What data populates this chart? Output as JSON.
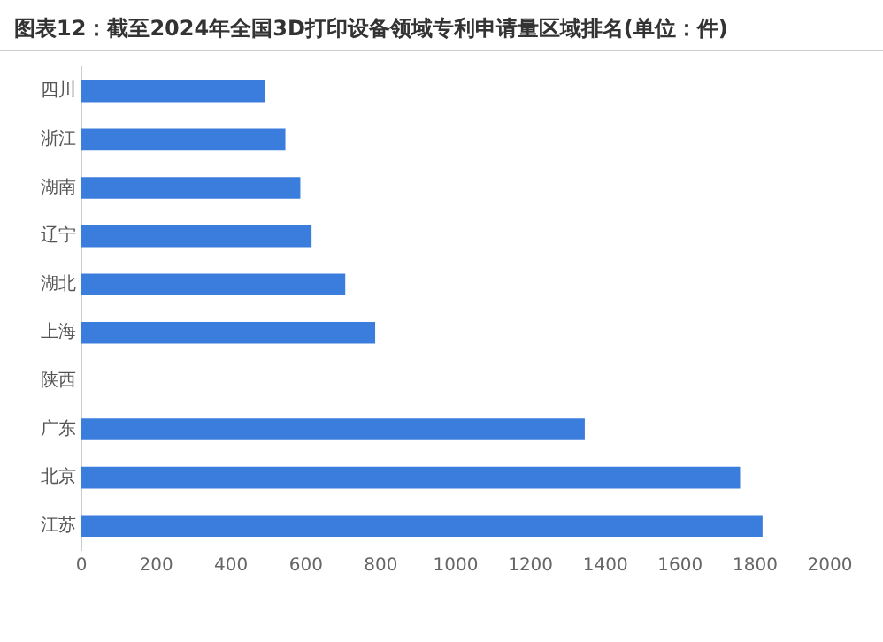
{
  "chart_data": {
    "type": "bar",
    "orientation": "horizontal",
    "title": "图表12：截至2024年全国3D打印设备领域专利申请量区域排名(单位：件)",
    "categories": [
      "四川",
      "浙江",
      "湖南",
      "辽宁",
      "湖北",
      "上海",
      "陕西",
      "广东",
      "北京",
      "江苏"
    ],
    "values": [
      490,
      545,
      585,
      615,
      705,
      785,
      null,
      1345,
      1760,
      1820
    ],
    "color": "#3b7ddd",
    "xlim": [
      0,
      2000
    ],
    "xticks": [
      0,
      200,
      400,
      600,
      800,
      1000,
      1200,
      1400,
      1600,
      1800,
      2000
    ],
    "grid": false,
    "legend": false
  }
}
